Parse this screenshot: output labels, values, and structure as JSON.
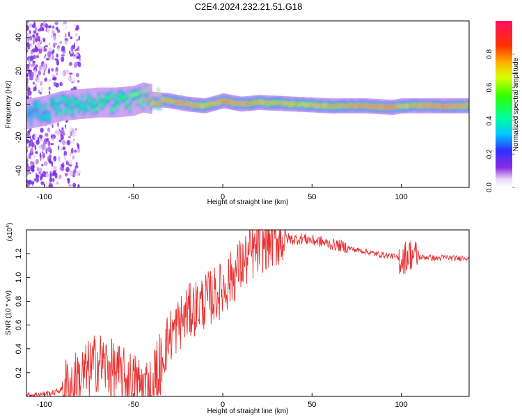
{
  "title": "C2E4.2024.232.21.51.G18",
  "chart_data": [
    {
      "type": "heatmap",
      "xlabel": "Height of straight line (km)",
      "ylabel": "Frequency (Hz)",
      "xlim": [
        -110,
        138
      ],
      "ylim": [
        -50,
        50
      ],
      "xticks": [
        -100,
        -50,
        0,
        50,
        100
      ],
      "yticks": [
        -40,
        -20,
        0,
        20,
        40
      ],
      "colorbar": {
        "label": "Normalized spectral amplitude",
        "range": [
          0,
          1
        ],
        "ticks": [
          0.0,
          0.2,
          0.4,
          0.6,
          0.8
        ]
      },
      "ridge": {
        "description_x": [
          -110,
          -100,
          -90,
          -80,
          -70,
          -60,
          -50,
          -45,
          -40,
          -30,
          -20,
          -10,
          0,
          10,
          20,
          40,
          60,
          80,
          95,
          100,
          110,
          120,
          138
        ],
        "freq": [
          -6,
          -4,
          -1,
          0,
          1,
          1,
          2,
          4,
          3,
          2,
          0,
          -1,
          2,
          0,
          1,
          0,
          -1,
          -1,
          -2,
          -1,
          -1,
          -1,
          -1
        ],
        "peak_amplitude": [
          0.3,
          0.4,
          0.45,
          0.5,
          0.55,
          0.55,
          0.6,
          0.7,
          0.85,
          0.9,
          0.95,
          0.8,
          0.95,
          0.9,
          0.85,
          0.8,
          0.85,
          0.95,
          0.95,
          0.8,
          0.9,
          0.95,
          0.95
        ]
      }
    },
    {
      "type": "line",
      "xlabel": "Height of straight line (km)",
      "ylabel": "SNR (10 * v/v)",
      "y_multiplier_label": "(x10",
      "y_multiplier_exp": "4",
      "xlim": [
        -110,
        138
      ],
      "ylim": [
        0,
        1.4
      ],
      "xticks": [
        -100,
        -50,
        0,
        50,
        100
      ],
      "yticks": [
        0.2,
        0.4,
        0.6,
        0.8,
        1.0,
        1.2
      ],
      "series": [
        {
          "color": "#e83030",
          "x": [
            -110,
            -100,
            -95,
            -90,
            -85,
            -80,
            -75,
            -70,
            -65,
            -60,
            -55,
            -50,
            -45,
            -40,
            -35,
            -30,
            -25,
            -20,
            -15,
            -10,
            -5,
            0,
            5,
            10,
            15,
            20,
            25,
            30,
            35,
            40,
            45,
            50,
            55,
            60,
            65,
            70,
            75,
            80,
            85,
            90,
            95,
            100,
            105,
            110,
            115,
            120,
            125,
            130,
            138
          ],
          "y": [
            0.01,
            0.02,
            0.03,
            0.06,
            0.1,
            0.15,
            0.22,
            0.3,
            0.25,
            0.2,
            0.15,
            0.12,
            0.08,
            0.1,
            0.3,
            0.5,
            0.6,
            0.7,
            0.75,
            0.8,
            0.85,
            0.9,
            1.0,
            1.1,
            1.18,
            1.25,
            1.3,
            1.32,
            1.33,
            1.32,
            1.33,
            1.31,
            1.3,
            1.28,
            1.27,
            1.25,
            1.23,
            1.22,
            1.2,
            1.19,
            1.18,
            1.15,
            1.2,
            1.17,
            1.17,
            1.16,
            1.17,
            1.16,
            1.17
          ]
        }
      ]
    }
  ]
}
